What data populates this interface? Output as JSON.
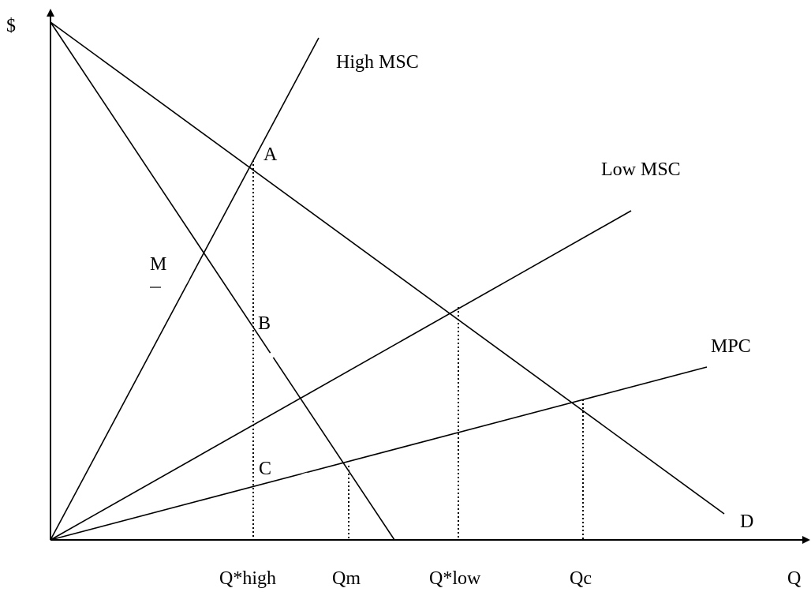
{
  "axes": {
    "y_label": "$",
    "x_label": "Q"
  },
  "curves": {
    "high_msc": "High MSC",
    "low_msc": "Low MSC",
    "mpc": "MPC",
    "demand": "D",
    "mr": "M"
  },
  "points": {
    "a": "A",
    "b": "B",
    "c": "C"
  },
  "quantities": {
    "q_star_high": "Q*high",
    "qm": "Qm",
    "q_star_low": "Q*low",
    "qc": "Qc"
  }
}
